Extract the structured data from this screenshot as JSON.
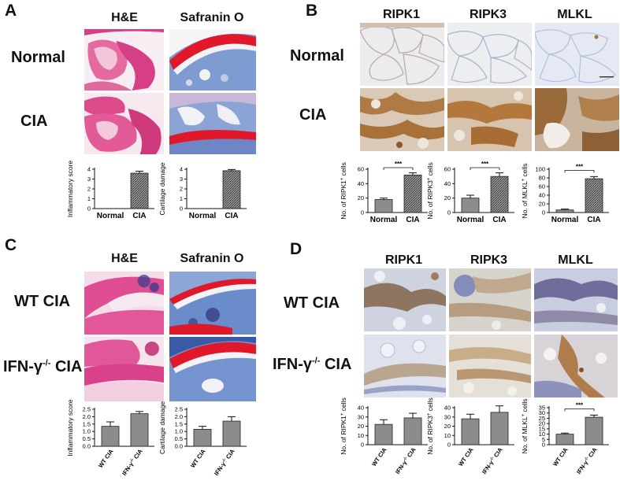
{
  "panels": {
    "a": {
      "label": "A",
      "cols": [
        "H&E",
        "Safranin O"
      ],
      "rows": [
        "Normal",
        "CIA"
      ]
    },
    "b": {
      "label": "B",
      "cols": [
        "RIPK1",
        "RIPK3",
        "MLKL"
      ],
      "rows": [
        "Normal",
        "CIA"
      ]
    },
    "c": {
      "label": "C",
      "cols": [
        "H&E",
        "Safranin O"
      ],
      "rows": [
        "WT CIA",
        "IFN-γ-/- CIA"
      ]
    },
    "d": {
      "label": "D",
      "cols": [
        "RIPK1",
        "RIPK3",
        "MLKL"
      ],
      "rows": [
        "WT CIA",
        "IFN-γ-/- CIA"
      ]
    }
  },
  "colors": {
    "he": "#e24a8c",
    "safranin_blue": "#6f8fc9",
    "safranin_red": "#e0182a",
    "ihc_bg": "#cdd5e6",
    "ihc_brown": "#a8733c",
    "bar": "#8a8a8a",
    "scale": "#333333"
  },
  "chart_data": [
    {
      "id": "a-he",
      "type": "bar",
      "categories": [
        "Normal",
        "CIA"
      ],
      "values": [
        0,
        3.6
      ],
      "errors": [
        0,
        0.2
      ],
      "ylabel": "Inflammatory score",
      "yticks": [
        "0",
        "1",
        "2",
        "3",
        "4"
      ],
      "ylim": [
        0,
        4
      ],
      "sig": ""
    },
    {
      "id": "a-saf",
      "type": "bar",
      "categories": [
        "Normal",
        "CIA"
      ],
      "values": [
        0,
        3.85
      ],
      "errors": [
        0,
        0.12
      ],
      "ylabel": "Cartilage damage",
      "yticks": [
        "0",
        "1",
        "2",
        "3",
        "4"
      ],
      "ylim": [
        0,
        4
      ],
      "sig": ""
    },
    {
      "id": "b-ripk1",
      "type": "bar",
      "categories": [
        "Normal",
        "CIA"
      ],
      "values": [
        18,
        52
      ],
      "errors": [
        2,
        3
      ],
      "ylabel": "No. of RIPK1+ cells",
      "yticks": [
        "0",
        "20",
        "40",
        "60"
      ],
      "ylim": [
        0,
        60
      ],
      "sig": "***"
    },
    {
      "id": "b-ripk3",
      "type": "bar",
      "categories": [
        "Normal",
        "CIA"
      ],
      "values": [
        20,
        50
      ],
      "errors": [
        4,
        5
      ],
      "ylabel": "No. of RIPK3+ cells",
      "yticks": [
        "0",
        "20",
        "40",
        "60"
      ],
      "ylim": [
        0,
        60
      ],
      "sig": "***"
    },
    {
      "id": "b-mlkl",
      "type": "bar",
      "categories": [
        "Normal",
        "CIA"
      ],
      "values": [
        6,
        78
      ],
      "errors": [
        2,
        5
      ],
      "ylabel": "No. of MLKL+ cells",
      "yticks": [
        "0",
        "20",
        "40",
        "60",
        "80",
        "100"
      ],
      "ylim": [
        0,
        100
      ],
      "sig": "***"
    },
    {
      "id": "c-he",
      "type": "bar",
      "categories": [
        "WT CIA",
        "IFN-γ-/- CIA"
      ],
      "values": [
        1.35,
        2.2
      ],
      "errors": [
        0.3,
        0.15
      ],
      "ylabel": "Inflammatory score",
      "yticks": [
        "0.0",
        "0.5",
        "1.0",
        "1.5",
        "2.0",
        "2.5"
      ],
      "ylim": [
        0,
        2.5
      ],
      "sig": ""
    },
    {
      "id": "c-saf",
      "type": "bar",
      "categories": [
        "WT CIA",
        "IFN-γ-/- CIA"
      ],
      "values": [
        1.15,
        1.7
      ],
      "errors": [
        0.2,
        0.3
      ],
      "ylabel": "Cartilage damage",
      "yticks": [
        "0.0",
        "0.5",
        "1.0",
        "1.5",
        "2.0",
        "2.5"
      ],
      "ylim": [
        0,
        2.5
      ],
      "sig": ""
    },
    {
      "id": "d-ripk1",
      "type": "bar",
      "categories": [
        "WT CIA",
        "IFN-γ-/- CIA"
      ],
      "values": [
        22,
        29
      ],
      "errors": [
        5,
        5
      ],
      "ylabel": "No. of RIPK1+ cells",
      "yticks": [
        "0",
        "10",
        "20",
        "30",
        "40"
      ],
      "ylim": [
        0,
        40
      ],
      "sig": ""
    },
    {
      "id": "d-ripk3",
      "type": "bar",
      "categories": [
        "WT CIA",
        "IFN-γ-/- CIA"
      ],
      "values": [
        28,
        35
      ],
      "errors": [
        5,
        7
      ],
      "ylabel": "No. of RIPK3+ cells",
      "yticks": [
        "0",
        "10",
        "20",
        "30",
        "40"
      ],
      "ylim": [
        0,
        40
      ],
      "sig": ""
    },
    {
      "id": "d-mlkl",
      "type": "bar",
      "categories": [
        "WT CIA",
        "IFN-γ-/- CIA"
      ],
      "values": [
        10,
        26
      ],
      "errors": [
        1,
        2
      ],
      "ylabel": "No. of MLKL+ cells",
      "yticks": [
        "0",
        "5",
        "10",
        "15",
        "20",
        "25",
        "30",
        "35"
      ],
      "ylim": [
        0,
        35
      ],
      "sig": "***"
    }
  ]
}
